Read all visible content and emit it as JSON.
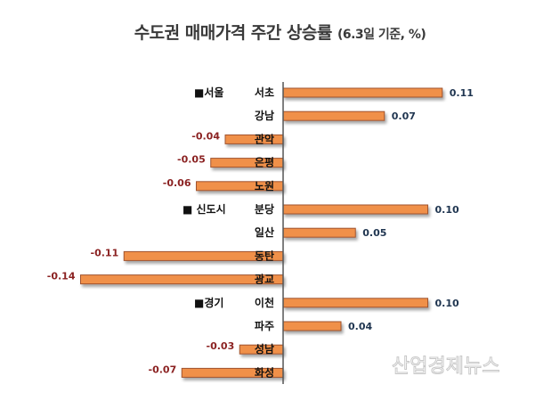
{
  "chart_data": {
    "type": "bar",
    "orientation": "horizontal",
    "title": "수도권 매매가격 주간 상승률",
    "subtitle": "(6.3일 기준, %)",
    "groups": [
      {
        "label": "■서울",
        "categories": [
          "서초",
          "강남",
          "관악",
          "은평",
          "노원"
        ]
      },
      {
        "label": "■ 신도시",
        "categories": [
          "분당",
          "일산",
          "동탄",
          "광교"
        ]
      },
      {
        "label": "■경기",
        "categories": [
          "이천",
          "파주",
          "성남",
          "화성"
        ]
      }
    ],
    "categories": [
      "서초",
      "강남",
      "관악",
      "은평",
      "노원",
      "분당",
      "일산",
      "동탄",
      "광교",
      "이천",
      "파주",
      "성남",
      "화성"
    ],
    "values": [
      0.11,
      0.07,
      -0.04,
      -0.05,
      -0.06,
      0.1,
      0.05,
      -0.11,
      -0.14,
      0.1,
      0.04,
      -0.03,
      -0.07
    ],
    "value_labels": [
      "0.11",
      "0.07",
      "-0.04",
      "-0.05",
      "-0.06",
      "0.10",
      "0.05",
      "-0.11",
      "-0.14",
      "0.10",
      "0.04",
      "-0.03",
      "-0.07"
    ],
    "grid": false,
    "legend": "none",
    "colors": {
      "bar": "#f0904a",
      "bar_border": "#a0522d",
      "positive_label": "#1f3550",
      "negative_label": "#8b2222",
      "axis": "#555555"
    }
  },
  "watermark": "산업경제뉴스"
}
